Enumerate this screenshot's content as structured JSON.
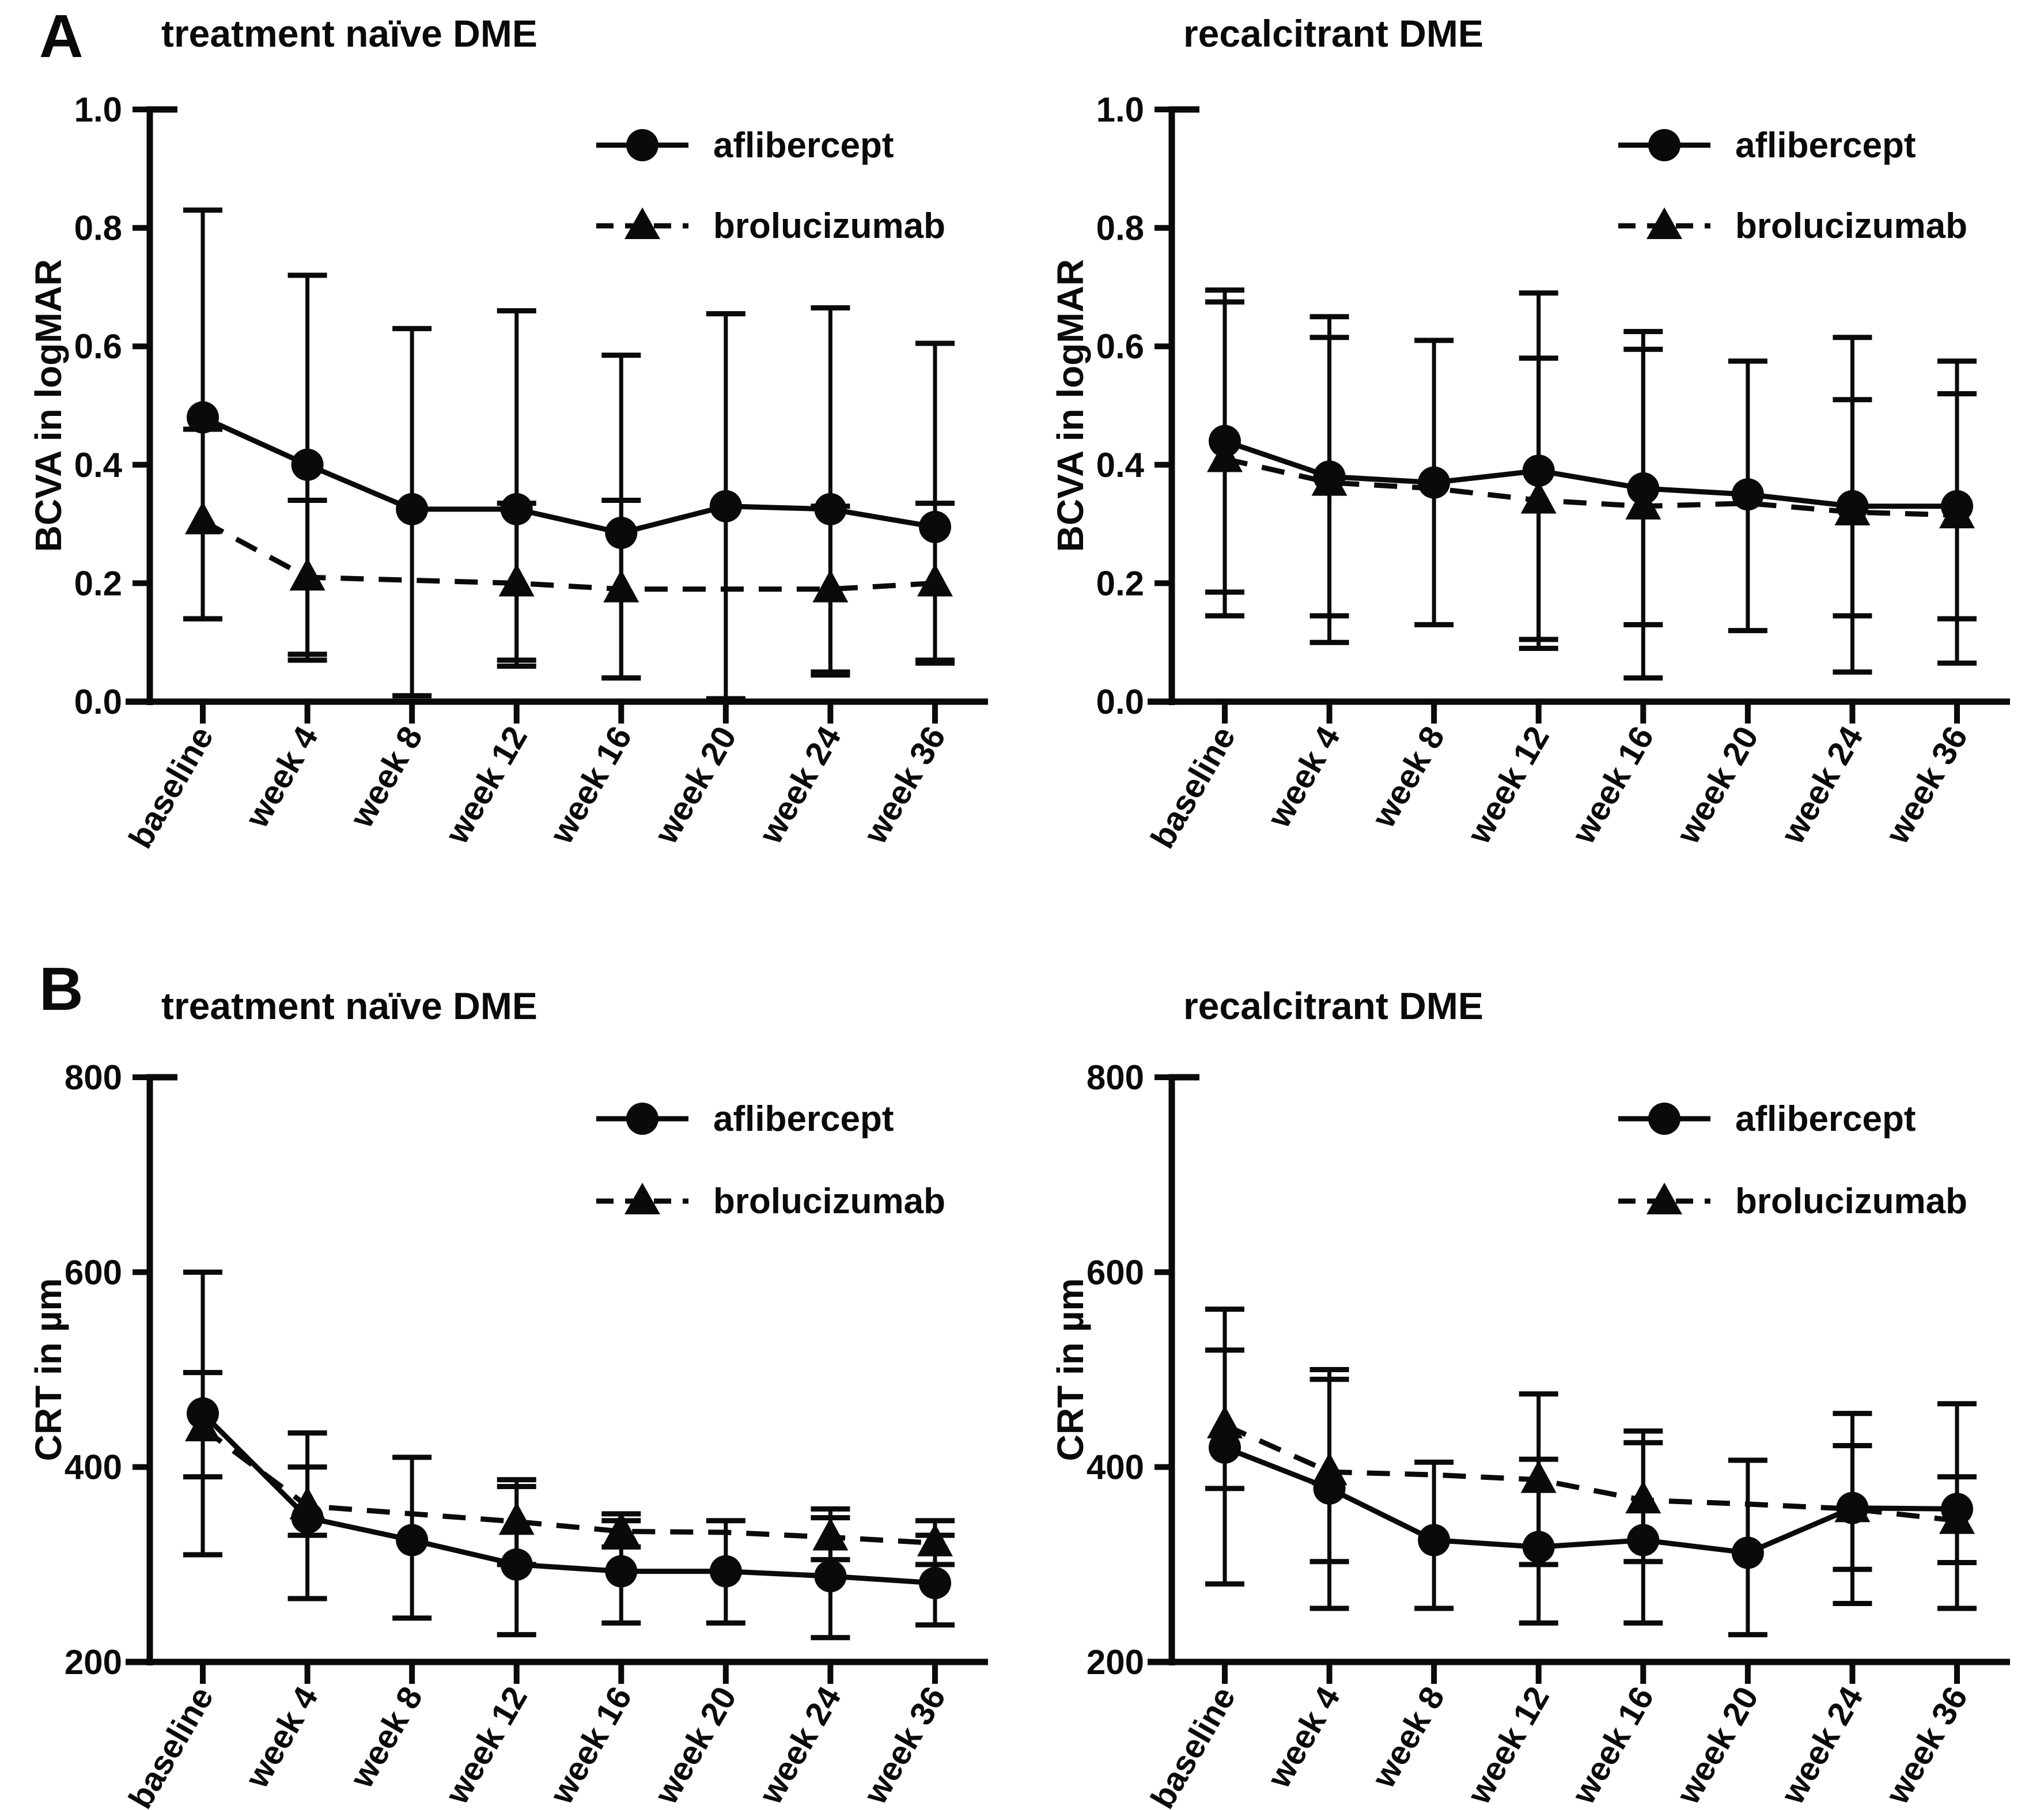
{
  "colors": {
    "ink": "#0a0a0a",
    "background": "#ffffff"
  },
  "panels": [
    {
      "label": "A"
    },
    {
      "label": "B"
    }
  ],
  "chart_data": [
    {
      "id": "bcva-treatment-naive",
      "panel": "A",
      "type": "line",
      "title": "treatment naïve DME",
      "ylabel": "BCVA in logMAR",
      "xlabel": "",
      "ylim": [
        0.0,
        1.0
      ],
      "yticks": [
        0.0,
        0.2,
        0.4,
        0.6,
        0.8,
        1.0
      ],
      "ytick_labels": [
        "0.0",
        "0.2",
        "0.4",
        "0.6",
        "0.8",
        "1.0"
      ],
      "categories": [
        "baseline",
        "week 4",
        "week 8",
        "week 12",
        "week 16",
        "week 20",
        "week 24",
        "week 36"
      ],
      "grid": false,
      "legend_position": "top-right",
      "series": [
        {
          "name": "aflibercept",
          "marker": "circle",
          "line": "solid",
          "values": [
            0.48,
            0.4,
            0.325,
            0.325,
            0.285,
            0.33,
            0.325,
            0.295
          ],
          "err_lo": [
            0.14,
            0.07,
            0.01,
            0.06,
            0.04,
            0.005,
            0.045,
            0.065
          ],
          "err_hi": [
            0.83,
            0.72,
            0.63,
            0.66,
            0.585,
            0.655,
            0.665,
            0.605
          ],
          "marker_skip": []
        },
        {
          "name": "brolucizumab",
          "marker": "triangle",
          "line": "dashed",
          "values": [
            0.305,
            0.21,
            0.205,
            0.2,
            0.19,
            0.19,
            0.19,
            0.2
          ],
          "err_lo": [
            0.14,
            0.08,
            null,
            0.07,
            0.04,
            null,
            0.05,
            0.07
          ],
          "err_hi": [
            0.46,
            0.34,
            null,
            0.335,
            0.34,
            null,
            0.33,
            0.335
          ],
          "marker_skip": [
            2,
            5
          ]
        }
      ]
    },
    {
      "id": "bcva-recalcitrant",
      "panel": "A",
      "type": "line",
      "title": "recalcitrant DME",
      "ylabel": "BCVA in logMAR",
      "xlabel": "",
      "ylim": [
        0.0,
        1.0
      ],
      "yticks": [
        0.0,
        0.2,
        0.4,
        0.6,
        0.8,
        1.0
      ],
      "ytick_labels": [
        "0.0",
        "0.2",
        "0.4",
        "0.6",
        "0.8",
        "1.0"
      ],
      "categories": [
        "baseline",
        "week 4",
        "week 8",
        "week 12",
        "week 16",
        "week 20",
        "week 24",
        "week 36"
      ],
      "grid": false,
      "legend_position": "top-right",
      "series": [
        {
          "name": "aflibercept",
          "marker": "circle",
          "line": "solid",
          "values": [
            0.44,
            0.38,
            0.37,
            0.39,
            0.36,
            0.35,
            0.33,
            0.33
          ],
          "err_lo": [
            0.145,
            0.1,
            0.13,
            0.09,
            0.04,
            0.12,
            0.05,
            0.065
          ],
          "err_hi": [
            0.695,
            0.65,
            0.61,
            0.69,
            0.625,
            0.575,
            0.615,
            0.575
          ],
          "marker_skip": []
        },
        {
          "name": "brolucizumab",
          "marker": "triangle",
          "line": "dashed",
          "values": [
            0.41,
            0.37,
            0.36,
            0.34,
            0.33,
            0.335,
            0.32,
            0.315
          ],
          "err_lo": [
            0.185,
            0.145,
            null,
            0.105,
            0.13,
            null,
            0.145,
            0.14
          ],
          "err_hi": [
            0.675,
            0.615,
            null,
            0.58,
            0.595,
            null,
            0.51,
            0.52
          ],
          "marker_skip": [
            2,
            5
          ]
        }
      ]
    },
    {
      "id": "crt-treatment-naive",
      "panel": "B",
      "type": "line",
      "title": "treatment naïve DME",
      "ylabel": "CRT in µm",
      "xlabel": "",
      "ylim": [
        200,
        800
      ],
      "yticks": [
        200,
        400,
        600,
        800
      ],
      "ytick_labels": [
        "200",
        "400",
        "600",
        "800"
      ],
      "categories": [
        "baseline",
        "week 4",
        "week 8",
        "week 12",
        "week 16",
        "week 20",
        "week 24",
        "week 36"
      ],
      "grid": false,
      "legend_position": "top-right",
      "series": [
        {
          "name": "aflibercept",
          "marker": "circle",
          "line": "solid",
          "values": [
            455,
            348,
            325,
            300,
            293,
            293,
            288,
            281
          ],
          "err_lo": [
            310,
            265,
            245,
            228,
            240,
            240,
            225,
            238
          ],
          "err_hi": [
            600,
            435,
            410,
            380,
            345,
            345,
            348,
            330
          ],
          "marker_skip": []
        },
        {
          "name": "brolucizumab",
          "marker": "triangle",
          "line": "dashed",
          "values": [
            440,
            360,
            352,
            344,
            334,
            333,
            328,
            322
          ],
          "err_lo": [
            390,
            330,
            null,
            300,
            318,
            null,
            305,
            300
          ],
          "err_hi": [
            497,
            400,
            null,
            387,
            352,
            null,
            357,
            345
          ],
          "marker_skip": [
            2,
            5
          ]
        }
      ]
    },
    {
      "id": "crt-recalcitrant",
      "panel": "B",
      "type": "line",
      "title": "recalcitrant DME",
      "ylabel": "CRT in µm",
      "xlabel": "",
      "ylim": [
        200,
        800
      ],
      "yticks": [
        200,
        400,
        600,
        800
      ],
      "ytick_labels": [
        "200",
        "400",
        "600",
        "800"
      ],
      "categories": [
        "baseline",
        "week 4",
        "week 8",
        "week 12",
        "week 16",
        "week 20",
        "week 24",
        "week 36"
      ],
      "grid": false,
      "legend_position": "top-right",
      "series": [
        {
          "name": "aflibercept",
          "marker": "circle",
          "line": "solid",
          "values": [
            420,
            378,
            325,
            318,
            325,
            312,
            358,
            357
          ],
          "err_lo": [
            280,
            255,
            255,
            240,
            240,
            228,
            260,
            255
          ],
          "err_hi": [
            562,
            500,
            405,
            408,
            425,
            407,
            455,
            465
          ],
          "marker_skip": []
        },
        {
          "name": "brolucizumab",
          "marker": "triangle",
          "line": "dashed",
          "values": [
            443,
            395,
            392,
            387,
            366,
            362,
            357,
            345
          ],
          "err_lo": [
            378,
            303,
            null,
            300,
            303,
            null,
            295,
            302
          ],
          "err_hi": [
            520,
            490,
            null,
            475,
            437,
            null,
            422,
            390
          ],
          "marker_skip": [
            2,
            5
          ]
        }
      ]
    }
  ]
}
